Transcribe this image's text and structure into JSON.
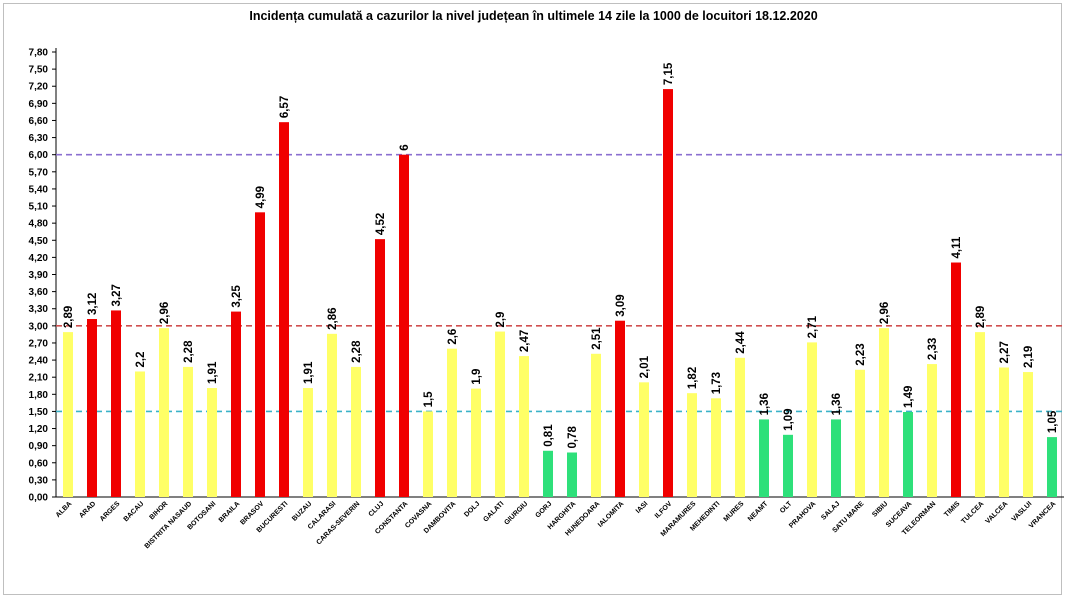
{
  "chart_data": {
    "type": "bar",
    "title": "Incidența cumulată a cazurilor la nivel județean în ultimele 14 zile la 1000 de locuitori 18.12.2020",
    "xlabel": "",
    "ylabel": "",
    "ylim": [
      0,
      7.8
    ],
    "yticks": [
      "0,00",
      "0,30",
      "0,60",
      "0,90",
      "1,20",
      "1,50",
      "1,80",
      "2,10",
      "2,40",
      "2,70",
      "3,00",
      "3,30",
      "3,60",
      "3,90",
      "4,20",
      "4,50",
      "4,80",
      "5,10",
      "5,40",
      "5,70",
      "6,00",
      "6,30",
      "6,60",
      "6,90",
      "7,20",
      "7,50",
      "7,80"
    ],
    "grid": false,
    "legend": "none",
    "categories": [
      "ALBA",
      "ARAD",
      "ARGES",
      "BACAU",
      "BIHOR",
      "BISTRITA NASAUD",
      "BOTOSANI",
      "BRAILA",
      "BRASOV",
      "BUCURESTI",
      "BUZAU",
      "CALARASI",
      "CARAS-SEVERIN",
      "CLUJ",
      "CONSTANTA",
      "COVASNA",
      "DAMBOVITA",
      "DOLJ",
      "GALATI",
      "GIURGIU",
      "GORJ",
      "HARGHITA",
      "HUNEDOARA",
      "IALOMITA",
      "IASI",
      "ILFOV",
      "MARAMURES",
      "MEHEDINTI",
      "MURES",
      "NEAMT",
      "OLT",
      "PRAHOVA",
      "SALAJ",
      "SATU MARE",
      "SIBIU",
      "SUCEAVA",
      "TELEORMAN",
      "TIMIS",
      "TULCEA",
      "VALCEA",
      "VASLUI",
      "VRANCEA"
    ],
    "values": [
      2.89,
      3.12,
      3.27,
      2.2,
      2.96,
      2.28,
      1.91,
      3.25,
      4.99,
      6.57,
      1.91,
      2.86,
      2.28,
      4.52,
      6,
      1.5,
      2.6,
      1.9,
      2.9,
      2.47,
      0.81,
      0.78,
      2.51,
      3.09,
      2.01,
      7.15,
      1.82,
      1.73,
      2.44,
      1.36,
      1.09,
      2.71,
      1.36,
      2.23,
      2.96,
      1.49,
      2.33,
      4.11,
      2.89,
      2.27,
      2.19,
      1.05
    ],
    "value_labels": [
      "2,89",
      "3,12",
      "3,27",
      "2,2",
      "2,96",
      "2,28",
      "1,91",
      "3,25",
      "4,99",
      "6,57",
      "1,91",
      "2,86",
      "2,28",
      "4,52",
      "6",
      "1,5",
      "2,6",
      "1,9",
      "2,9",
      "2,47",
      "0,81",
      "0,78",
      "2,51",
      "3,09",
      "2,01",
      "7,15",
      "1,82",
      "1,73",
      "2,44",
      "1,36",
      "1,09",
      "2,71",
      "1,36",
      "2,23",
      "2,96",
      "1,49",
      "2,33",
      "4,11",
      "2,89",
      "2,27",
      "2,19",
      "1,05"
    ],
    "bar_colors": [
      "yellow",
      "red",
      "red",
      "yellow",
      "yellow",
      "yellow",
      "yellow",
      "red",
      "red",
      "red",
      "yellow",
      "yellow",
      "yellow",
      "red",
      "red",
      "yellow",
      "yellow",
      "yellow",
      "yellow",
      "yellow",
      "green",
      "green",
      "yellow",
      "red",
      "yellow",
      "red",
      "yellow",
      "yellow",
      "yellow",
      "green",
      "green",
      "yellow",
      "green",
      "yellow",
      "yellow",
      "green",
      "yellow",
      "red",
      "yellow",
      "yellow",
      "yellow",
      "green"
    ],
    "reference_lines": [
      {
        "value": 6.0,
        "color": "#8b6fd0"
      },
      {
        "value": 3.0,
        "color": "#d05050"
      },
      {
        "value": 1.5,
        "color": "#3bb3c8"
      }
    ],
    "colors": {
      "red": "#f00000",
      "yellow": "#ffff66",
      "green": "#2ee07a"
    }
  }
}
